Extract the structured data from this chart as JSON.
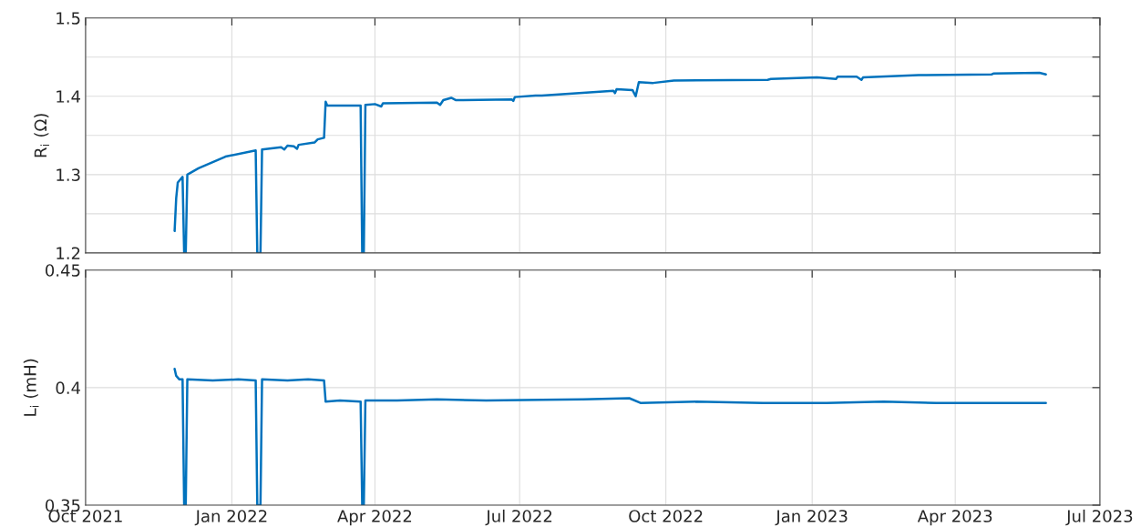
{
  "chart_data": [
    {
      "type": "line",
      "ylabel": "R$_{i}$ (Ω)",
      "xlim": [
        "2021-10-01",
        "2023-07-01"
      ],
      "xticks": [
        {
          "value": "2021-10-01",
          "label": null
        },
        {
          "value": "2022-01-01",
          "label": null
        },
        {
          "value": "2022-04-01",
          "label": null
        },
        {
          "value": "2022-07-01",
          "label": null
        },
        {
          "value": "2022-10-01",
          "label": null
        },
        {
          "value": "2023-01-01",
          "label": null
        },
        {
          "value": "2023-04-01",
          "label": null
        },
        {
          "value": "2023-07-01",
          "label": null
        }
      ],
      "ylim": [
        1.2,
        1.5
      ],
      "yticks": [
        1.2,
        {
          "value": 1.25,
          "label": null
        },
        1.3,
        {
          "value": 1.35,
          "label": null
        },
        1.4,
        {
          "value": 1.45,
          "label": null
        },
        1.5
      ],
      "tick_labels": "y",
      "grid": true,
      "x": [
        "2021-11-26",
        "2021-11-27",
        "2021-11-28",
        "2021-12-01",
        "2021-12-02",
        "2021-12-03",
        "2021-12-04",
        "2021-12-11",
        "2021-12-28",
        "2022-01-16",
        "2022-01-17",
        "2022-01-19",
        "2022-01-20",
        "2022-02-01",
        "2022-02-03",
        "2022-02-05",
        "2022-02-09",
        "2022-02-11",
        "2022-02-12",
        "2022-02-22",
        "2022-02-24",
        "2022-02-28",
        "2022-03-01",
        "2022-03-02",
        "2022-03-23",
        "2022-03-24",
        "2022-03-25",
        "2022-03-26",
        "2022-04-01",
        "2022-04-05",
        "2022-04-06",
        "2022-05-10",
        "2022-05-12",
        "2022-05-14",
        "2022-05-19",
        "2022-05-22",
        "2022-06-26",
        "2022-06-27",
        "2022-06-28",
        "2022-07-11",
        "2022-07-15",
        "2022-08-29",
        "2022-08-30",
        "2022-08-31",
        "2022-09-10",
        "2022-09-12",
        "2022-09-14",
        "2022-09-23",
        "2022-10-06",
        "2022-12-04",
        "2022-12-06",
        "2023-01-04",
        "2023-01-16",
        "2023-01-17",
        "2023-01-29",
        "2023-02-01",
        "2023-02-02",
        "2023-03-09",
        "2023-04-24",
        "2023-04-25",
        "2023-05-24",
        "2023-05-28"
      ],
      "series": [
        {
          "color": "#0072bd",
          "values": [
            1.228,
            1.27,
            1.29,
            1.297,
            1.2,
            1.2,
            1.3,
            1.308,
            1.323,
            1.331,
            1.2,
            1.2,
            1.332,
            1.335,
            1.332,
            1.337,
            1.336,
            1.333,
            1.338,
            1.341,
            1.345,
            1.347,
            1.393,
            1.388,
            1.388,
            1.2,
            1.2,
            1.389,
            1.39,
            1.387,
            1.391,
            1.392,
            1.389,
            1.395,
            1.398,
            1.395,
            1.396,
            1.394,
            1.399,
            1.401,
            1.401,
            1.407,
            1.404,
            1.409,
            1.408,
            1.4,
            1.418,
            1.417,
            1.42,
            1.421,
            1.422,
            1.424,
            1.422,
            1.425,
            1.425,
            1.421,
            1.424,
            1.427,
            1.428,
            1.429,
            1.43,
            1.428
          ]
        }
      ]
    },
    {
      "type": "line",
      "ylabel": "L$_{i}$ (mH)",
      "xlim": [
        "2021-10-01",
        "2023-07-01"
      ],
      "xticks": [
        {
          "value": "2021-10-01",
          "label": "Oct 2021"
        },
        {
          "value": "2022-01-01",
          "label": "Jan 2022"
        },
        {
          "value": "2022-04-01",
          "label": "Apr 2022"
        },
        {
          "value": "2022-07-01",
          "label": "Jul 2022"
        },
        {
          "value": "2022-10-01",
          "label": "Oct 2022"
        },
        {
          "value": "2023-01-01",
          "label": "Jan 2023"
        },
        {
          "value": "2023-04-01",
          "label": "Apr 2023"
        },
        {
          "value": "2023-07-01",
          "label": "Jul 2023"
        }
      ],
      "ylim": [
        0.35,
        0.45
      ],
      "yticks": [
        0.35,
        0.4,
        0.45
      ],
      "grid": true,
      "x": [
        "2021-11-26",
        "2021-11-27",
        "2021-11-29",
        "2021-12-01",
        "2021-12-02",
        "2021-12-03",
        "2021-12-04",
        "2021-12-20",
        "2022-01-05",
        "2022-01-16",
        "2022-01-17",
        "2022-01-19",
        "2022-01-20",
        "2022-02-05",
        "2022-02-18",
        "2022-02-28",
        "2022-03-01",
        "2022-03-10",
        "2022-03-23",
        "2022-03-24",
        "2022-03-25",
        "2022-03-26",
        "2022-04-15",
        "2022-05-10",
        "2022-06-10",
        "2022-07-15",
        "2022-08-10",
        "2022-09-08",
        "2022-09-15",
        "2022-10-20",
        "2022-12-01",
        "2023-01-10",
        "2023-02-15",
        "2023-03-20",
        "2023-04-25",
        "2023-05-28"
      ],
      "series": [
        {
          "color": "#0072bd",
          "values": [
            0.408,
            0.405,
            0.4035,
            0.4035,
            0.35,
            0.35,
            0.4035,
            0.403,
            0.4035,
            0.403,
            0.35,
            0.35,
            0.4035,
            0.403,
            0.4035,
            0.403,
            0.394,
            0.3945,
            0.394,
            0.35,
            0.35,
            0.3945,
            0.3945,
            0.395,
            0.3945,
            0.3948,
            0.395,
            0.3955,
            0.3935,
            0.394,
            0.3935,
            0.3935,
            0.394,
            0.3935,
            0.3935,
            0.3935
          ]
        }
      ]
    }
  ]
}
